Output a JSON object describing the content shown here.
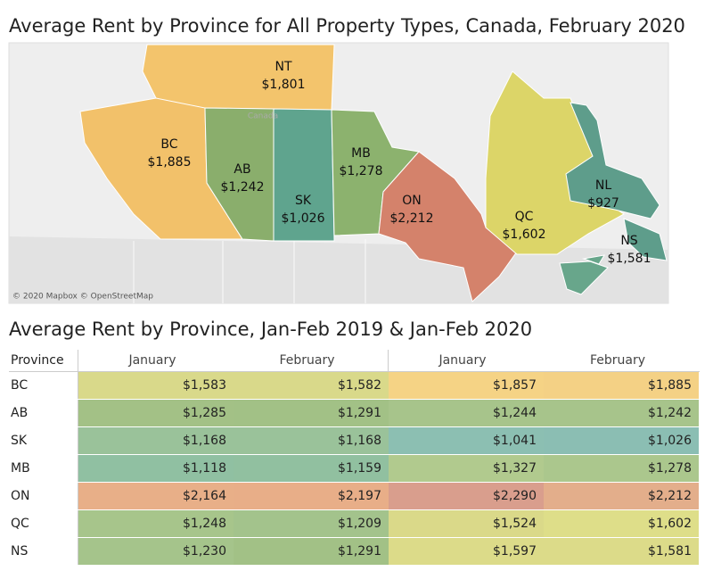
{
  "chart_data": {
    "type": "map",
    "title": "Average Rent by Province for All Property Types, Canada, February 2020",
    "annotations": [
      "Canada",
      "© 2020 Mapbox © OpenStreetMap"
    ],
    "categories": [
      "NT",
      "BC",
      "AB",
      "SK",
      "MB",
      "ON",
      "QC",
      "NL",
      "NS"
    ],
    "values": [
      1801,
      1885,
      1242,
      1026,
      1278,
      2212,
      1602,
      927,
      1581
    ],
    "value_labels": [
      "$1,801",
      "$1,885",
      "$1,242",
      "$1,026",
      "$1,278",
      "$2,212",
      "$1,602",
      "$927",
      "$1,581"
    ],
    "colors": [
      "#f3c46c",
      "#f2c16a",
      "#8aae6c",
      "#5fa48e",
      "#8cb26e",
      "#d4826b",
      "#dcd568",
      "#5e9d8b",
      "#68a68b"
    ]
  },
  "table": {
    "title": "Average Rent by Province, Jan-Feb 2019 & Jan-Feb 2020",
    "columns": [
      "Province",
      "January",
      "February",
      "January",
      "February"
    ],
    "rows": [
      [
        "BC",
        "$1,583",
        "$1,582",
        "$1,857",
        "$1,885"
      ],
      [
        "AB",
        "$1,285",
        "$1,291",
        "$1,244",
        "$1,242"
      ],
      [
        "SK",
        "$1,168",
        "$1,168",
        "$1,041",
        "$1,026"
      ],
      [
        "MB",
        "$1,118",
        "$1,159",
        "$1,327",
        "$1,278"
      ],
      [
        "ON",
        "$2,164",
        "$2,197",
        "$2,290",
        "$2,212"
      ],
      [
        "QC",
        "$1,248",
        "$1,209",
        "$1,524",
        "$1,602"
      ],
      [
        "NS",
        "$1,230",
        "$1,291",
        "$1,597",
        "$1,581"
      ]
    ],
    "colors": [
      [
        "#d9d98a",
        "#d9d98a",
        "#f5d385",
        "#f4d185"
      ],
      [
        "#a3c186",
        "#a2c186",
        "#a7c48b",
        "#a7c48b"
      ],
      [
        "#9ac29a",
        "#9ac29a",
        "#8cbfb2",
        "#8bbeb3"
      ],
      [
        "#90c0a2",
        "#91c0a0",
        "#b1ca8e",
        "#abc78d"
      ],
      [
        "#e8af88",
        "#e8ae88",
        "#d99e8d",
        "#e3ae8b"
      ],
      [
        "#a7c58b",
        "#a3c38c",
        "#dad989",
        "#dede89"
      ],
      [
        "#a5c48b",
        "#a2c186",
        "#dcdb89",
        "#dcdb89"
      ]
    ]
  }
}
